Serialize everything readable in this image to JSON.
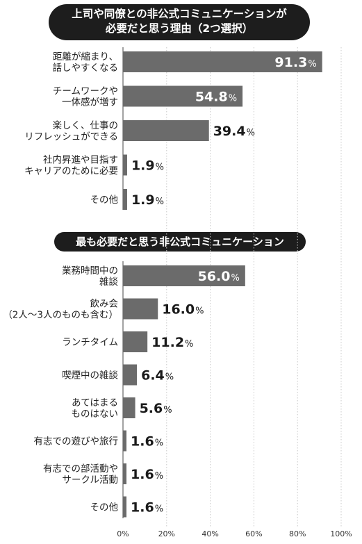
{
  "chart_data": [
    {
      "type": "bar",
      "orientation": "horizontal",
      "title": "上司や同僚との非公式コミュニケーションが必要だと思う理由（2つ選択）",
      "title_lines": [
        "上司や同僚との非公式コミュニケーションが",
        "必要だと思う理由（2つ選択）"
      ],
      "categories": [
        [
          "距離が縮まり、",
          "話しやすくなる"
        ],
        [
          "チームワークや",
          "一体感が増す"
        ],
        [
          "楽しく、仕事の",
          "リフレッシュができる"
        ],
        [
          "社内昇進や目指す",
          "キャリアのために必要"
        ],
        [
          "その他"
        ]
      ],
      "values": [
        91.3,
        54.8,
        39.4,
        1.9,
        1.9
      ],
      "labels": [
        "91.3",
        "54.8",
        "39.4",
        "1.9",
        "1.9"
      ],
      "unit": "%",
      "xlim": [
        0,
        100
      ]
    },
    {
      "type": "bar",
      "orientation": "horizontal",
      "title": "最も必要だと思う非公式コミュニケーション",
      "categories": [
        [
          "業務時間中の",
          "雑談"
        ],
        [
          "飲み会",
          "（2人～3人のものも含む）"
        ],
        [
          "ランチタイム"
        ],
        [
          "喫煙中の雑談"
        ],
        [
          "あてはまる",
          "ものはない"
        ],
        [
          "有志での遊びや旅行"
        ],
        [
          "有志での部活動や",
          "サークル活動"
        ],
        [
          "その他"
        ]
      ],
      "values": [
        56.0,
        16.0,
        11.2,
        6.4,
        5.6,
        1.6,
        1.6,
        1.6
      ],
      "labels": [
        "56.0",
        "16.0",
        "11.2",
        "6.4",
        "5.6",
        "1.6",
        "1.6",
        "1.6"
      ],
      "unit": "%",
      "xlim": [
        0,
        100
      ]
    }
  ],
  "x_axis": {
    "ticks": [
      "0%",
      "20%",
      "40%",
      "60%",
      "80%",
      "100%"
    ],
    "tick_values": [
      0,
      20,
      40,
      60,
      80,
      100
    ]
  },
  "colors": {
    "bar": "#6b6b6b",
    "title_bg": "#1d1d1d",
    "inside_label": "#ffffff",
    "outside_label": "#1a1a1a"
  }
}
